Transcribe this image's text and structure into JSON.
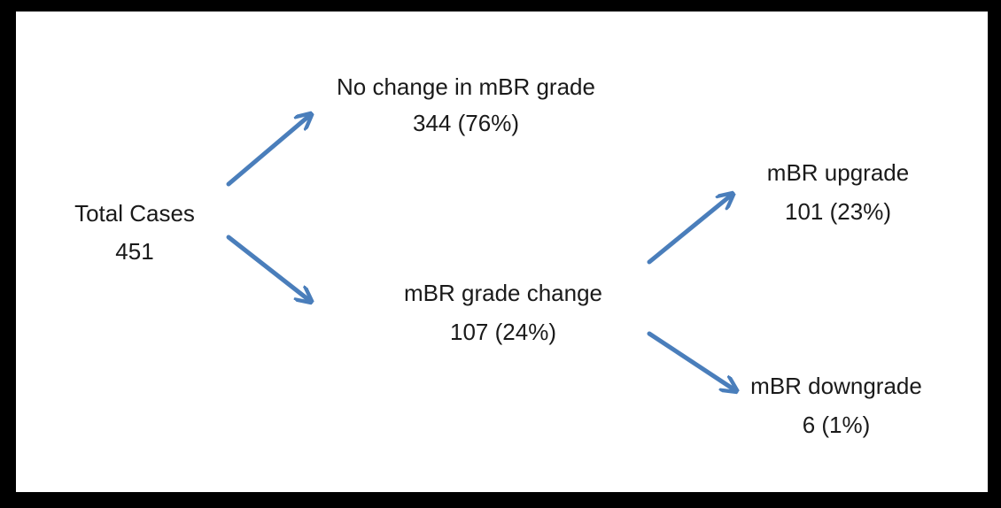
{
  "nodes": [
    {
      "label": "Total Cases",
      "value": "451"
    },
    {
      "label": "No change in mBR grade",
      "value": "344 (76%)"
    },
    {
      "label": "mBR grade change",
      "value": "107 (24%)"
    },
    {
      "label": "mBR upgrade",
      "value": "101 (23%)"
    },
    {
      "label": "mBR downgrade",
      "value": "6 (1%)"
    }
  ]
}
